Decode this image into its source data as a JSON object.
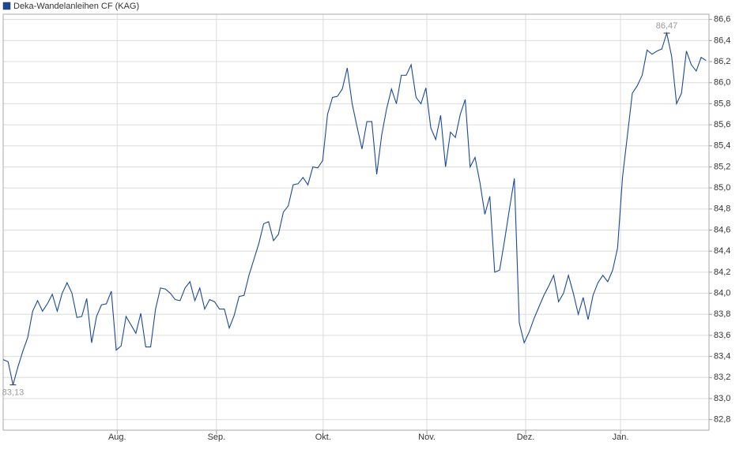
{
  "chart_data": {
    "type": "line",
    "series": [
      {
        "name": "Deka-Wandelanleihen CF (KAG)",
        "color": "#1a4a97",
        "values": [
          83.37,
          83.35,
          83.13,
          83.3,
          83.45,
          83.58,
          83.83,
          83.93,
          83.83,
          83.9,
          83.99,
          83.83,
          84.0,
          84.1,
          84.0,
          83.77,
          83.78,
          83.95,
          83.53,
          83.78,
          83.89,
          83.9,
          84.02,
          83.46,
          83.5,
          83.78,
          83.7,
          83.62,
          83.81,
          83.49,
          83.49,
          83.85,
          84.05,
          84.04,
          84.0,
          83.94,
          83.93,
          84.05,
          84.11,
          83.93,
          84.05,
          83.85,
          83.94,
          83.92,
          83.85,
          83.85,
          83.67,
          83.79,
          83.97,
          83.98,
          84.17,
          84.32,
          84.47,
          84.66,
          84.68,
          84.5,
          84.56,
          84.77,
          84.83,
          85.03,
          85.04,
          85.1,
          85.03,
          85.2,
          85.19,
          85.26,
          85.7,
          85.86,
          85.87,
          85.94,
          86.14,
          85.8,
          85.58,
          85.37,
          85.63,
          85.63,
          85.13,
          85.5,
          85.75,
          85.94,
          85.8,
          86.07,
          86.07,
          86.17,
          85.86,
          85.8,
          85.95,
          85.57,
          85.46,
          85.69,
          85.2,
          85.53,
          85.48,
          85.7,
          85.84,
          85.2,
          85.29,
          85.05,
          84.75,
          84.92,
          84.2,
          84.22,
          84.5,
          84.8,
          85.09,
          83.72,
          83.53,
          83.63,
          83.76,
          83.87,
          83.98,
          84.07,
          84.17,
          83.92,
          84.0,
          84.17,
          84.0,
          83.8,
          83.96,
          83.75,
          83.98,
          84.1,
          84.17,
          84.11,
          84.22,
          84.43,
          85.1,
          85.5,
          85.9,
          85.97,
          86.07,
          86.31,
          86.27,
          86.3,
          86.32,
          86.47,
          86.25,
          85.8,
          85.9,
          86.3,
          86.17,
          86.11,
          86.24,
          86.21
        ]
      }
    ],
    "xlim": [
      0,
      143.6
    ],
    "xticks": [
      {
        "value": 23.2,
        "label": "Aug."
      },
      {
        "value": 43.4,
        "label": "Sep."
      },
      {
        "value": 65.1,
        "label": "Okt."
      },
      {
        "value": 86.2,
        "label": "Nov."
      },
      {
        "value": 106.3,
        "label": "Dez."
      },
      {
        "value": 125.6,
        "label": "Jan."
      }
    ],
    "ylim": [
      82.7,
      86.65
    ],
    "yticks": [
      {
        "value": 82.8,
        "label": "82,8"
      },
      {
        "value": 83.0,
        "label": "83,0"
      },
      {
        "value": 83.2,
        "label": "83,2"
      },
      {
        "value": 83.4,
        "label": "83,4"
      },
      {
        "value": 83.6,
        "label": "83,6"
      },
      {
        "value": 83.8,
        "label": "83,8"
      },
      {
        "value": 84.0,
        "label": "84,0"
      },
      {
        "value": 84.2,
        "label": "84,2"
      },
      {
        "value": 84.4,
        "label": "84,4"
      },
      {
        "value": 84.6,
        "label": "84,6"
      },
      {
        "value": 84.8,
        "label": "84,8"
      },
      {
        "value": 85.0,
        "label": "85,0"
      },
      {
        "value": 85.2,
        "label": "85,2"
      },
      {
        "value": 85.4,
        "label": "85,4"
      },
      {
        "value": 85.6,
        "label": "85,6"
      },
      {
        "value": 85.8,
        "label": "85,8"
      },
      {
        "value": 86.0,
        "label": "86,0"
      },
      {
        "value": 86.2,
        "label": "86,2"
      },
      {
        "value": 86.4,
        "label": "86,4"
      },
      {
        "value": 86.6,
        "label": "86,6"
      }
    ],
    "annotations": [
      {
        "text": "83,13",
        "value": 83.13
      },
      {
        "text": "86,47",
        "value": 86.47
      }
    ],
    "grid": true,
    "legend": "top-left"
  }
}
